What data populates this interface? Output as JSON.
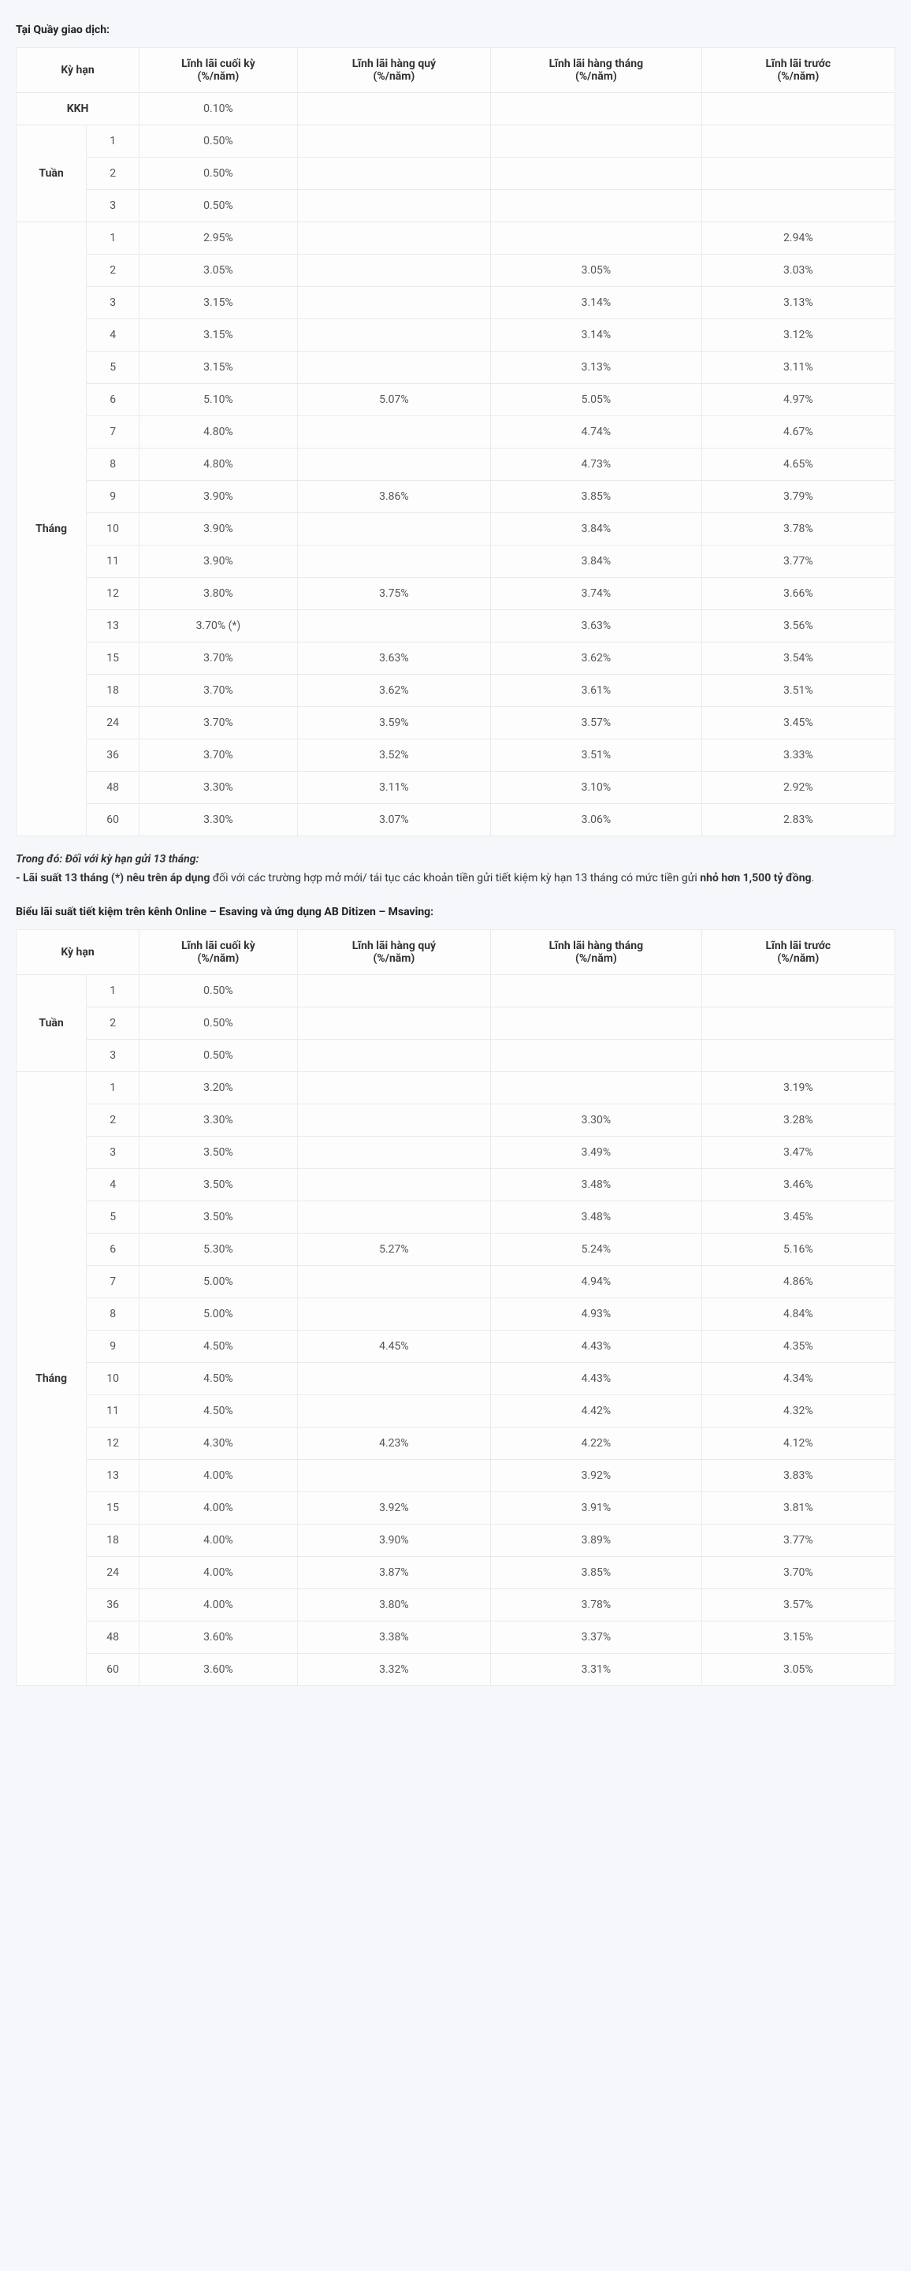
{
  "labels": {
    "section1_title": "Tại Quầy giao dịch:",
    "col_term": "Kỳ hạn",
    "col_end_ln1": "Lĩnh lãi cuối kỳ",
    "col_end_ln2": "(%/năm)",
    "col_q_ln1": "Lĩnh lãi hàng quý",
    "col_q_ln2": "(%/năm)",
    "col_m_ln1": "Lĩnh lãi hàng tháng",
    "col_m_ln2": "(%/năm)",
    "col_pre_ln1": "Lĩnh lãi trước",
    "col_pre_ln2": "(%/năm)",
    "kkh": "KKH",
    "tuan": "Tuần",
    "thang": "Tháng",
    "note_line1": "Trong đó: Đối với kỳ hạn gửi 13 tháng:",
    "note_line2_b": "- Lãi suất 13 tháng (*) nêu trên áp dụng",
    "note_line2_rest": " đối với các trường hợp mở mới/ tái tục các khoản tiền gửi tiết kiệm kỳ hạn 13 tháng có mức tiền gửi ",
    "note_line2_b2": "nhỏ hơn 1,500 tỷ đồng",
    "note_line2_dot": ".",
    "section2_title": "Biểu lãi suất tiết kiệm trên kênh Online – Esaving và ứng dụng AB Ditizen – Msaving:"
  },
  "table1": {
    "kkh_row": {
      "end": "0.10%"
    },
    "tuan_rows": [
      {
        "n": "1",
        "end": "0.50%",
        "q": "",
        "m": "",
        "pre": ""
      },
      {
        "n": "2",
        "end": "0.50%",
        "q": "",
        "m": "",
        "pre": ""
      },
      {
        "n": "3",
        "end": "0.50%",
        "q": "",
        "m": "",
        "pre": ""
      }
    ],
    "thang_rows": [
      {
        "n": "1",
        "end": "2.95%",
        "q": "",
        "m": "",
        "pre": "2.94%"
      },
      {
        "n": "2",
        "end": "3.05%",
        "q": "",
        "m": "3.05%",
        "pre": "3.03%"
      },
      {
        "n": "3",
        "end": "3.15%",
        "q": "",
        "m": "3.14%",
        "pre": "3.13%"
      },
      {
        "n": "4",
        "end": "3.15%",
        "q": "",
        "m": "3.14%",
        "pre": "3.12%"
      },
      {
        "n": "5",
        "end": "3.15%",
        "q": "",
        "m": "3.13%",
        "pre": "3.11%"
      },
      {
        "n": "6",
        "end": "5.10%",
        "q": "5.07%",
        "m": "5.05%",
        "pre": "4.97%"
      },
      {
        "n": "7",
        "end": "4.80%",
        "q": "",
        "m": "4.74%",
        "pre": "4.67%"
      },
      {
        "n": "8",
        "end": "4.80%",
        "q": "",
        "m": "4.73%",
        "pre": "4.65%"
      },
      {
        "n": "9",
        "end": "3.90%",
        "q": "3.86%",
        "m": "3.85%",
        "pre": "3.79%"
      },
      {
        "n": "10",
        "end": "3.90%",
        "q": "",
        "m": "3.84%",
        "pre": "3.78%"
      },
      {
        "n": "11",
        "end": "3.90%",
        "q": "",
        "m": "3.84%",
        "pre": "3.77%"
      },
      {
        "n": "12",
        "end": "3.80%",
        "q": "3.75%",
        "m": "3.74%",
        "pre": "3.66%"
      },
      {
        "n": "13",
        "end": "3.70% (*)",
        "q": "",
        "m": "3.63%",
        "pre": "3.56%"
      },
      {
        "n": "15",
        "end": "3.70%",
        "q": "3.63%",
        "m": "3.62%",
        "pre": "3.54%"
      },
      {
        "n": "18",
        "end": "3.70%",
        "q": "3.62%",
        "m": "3.61%",
        "pre": "3.51%"
      },
      {
        "n": "24",
        "end": "3.70%",
        "q": "3.59%",
        "m": "3.57%",
        "pre": "3.45%"
      },
      {
        "n": "36",
        "end": "3.70%",
        "q": "3.52%",
        "m": "3.51%",
        "pre": "3.33%"
      },
      {
        "n": "48",
        "end": "3.30%",
        "q": "3.11%",
        "m": "3.10%",
        "pre": "2.92%"
      },
      {
        "n": "60",
        "end": "3.30%",
        "q": "3.07%",
        "m": "3.06%",
        "pre": "2.83%"
      }
    ]
  },
  "table2": {
    "tuan_rows": [
      {
        "n": "1",
        "end": "0.50%",
        "q": "",
        "m": "",
        "pre": ""
      },
      {
        "n": "2",
        "end": "0.50%",
        "q": "",
        "m": "",
        "pre": ""
      },
      {
        "n": "3",
        "end": "0.50%",
        "q": "",
        "m": "",
        "pre": ""
      }
    ],
    "thang_rows": [
      {
        "n": "1",
        "end": "3.20%",
        "q": "",
        "m": "",
        "pre": "3.19%"
      },
      {
        "n": "2",
        "end": "3.30%",
        "q": "",
        "m": "3.30%",
        "pre": "3.28%"
      },
      {
        "n": "3",
        "end": "3.50%",
        "q": "",
        "m": "3.49%",
        "pre": "3.47%"
      },
      {
        "n": "4",
        "end": "3.50%",
        "q": "",
        "m": "3.48%",
        "pre": "3.46%"
      },
      {
        "n": "5",
        "end": "3.50%",
        "q": "",
        "m": "3.48%",
        "pre": "3.45%"
      },
      {
        "n": "6",
        "end": "5.30%",
        "q": "5.27%",
        "m": "5.24%",
        "pre": "5.16%"
      },
      {
        "n": "7",
        "end": "5.00%",
        "q": "",
        "m": "4.94%",
        "pre": "4.86%"
      },
      {
        "n": "8",
        "end": "5.00%",
        "q": "",
        "m": "4.93%",
        "pre": "4.84%"
      },
      {
        "n": "9",
        "end": "4.50%",
        "q": "4.45%",
        "m": "4.43%",
        "pre": "4.35%"
      },
      {
        "n": "10",
        "end": "4.50%",
        "q": "",
        "m": "4.43%",
        "pre": "4.34%"
      },
      {
        "n": "11",
        "end": "4.50%",
        "q": "",
        "m": "4.42%",
        "pre": "4.32%"
      },
      {
        "n": "12",
        "end": "4.30%",
        "q": "4.23%",
        "m": "4.22%",
        "pre": "4.12%"
      },
      {
        "n": "13",
        "end": "4.00%",
        "q": "",
        "m": "3.92%",
        "pre": "3.83%"
      },
      {
        "n": "15",
        "end": "4.00%",
        "q": "3.92%",
        "m": "3.91%",
        "pre": "3.81%"
      },
      {
        "n": "18",
        "end": "4.00%",
        "q": "3.90%",
        "m": "3.89%",
        "pre": "3.77%"
      },
      {
        "n": "24",
        "end": "4.00%",
        "q": "3.87%",
        "m": "3.85%",
        "pre": "3.70%"
      },
      {
        "n": "36",
        "end": "4.00%",
        "q": "3.80%",
        "m": "3.78%",
        "pre": "3.57%"
      },
      {
        "n": "48",
        "end": "3.60%",
        "q": "3.38%",
        "m": "3.37%",
        "pre": "3.15%"
      },
      {
        "n": "60",
        "end": "3.60%",
        "q": "3.32%",
        "m": "3.31%",
        "pre": "3.05%"
      }
    ]
  },
  "style": {
    "bg": "#f5f7fb",
    "border": "#e8eaee",
    "text": "#555",
    "header_text": "#333"
  }
}
